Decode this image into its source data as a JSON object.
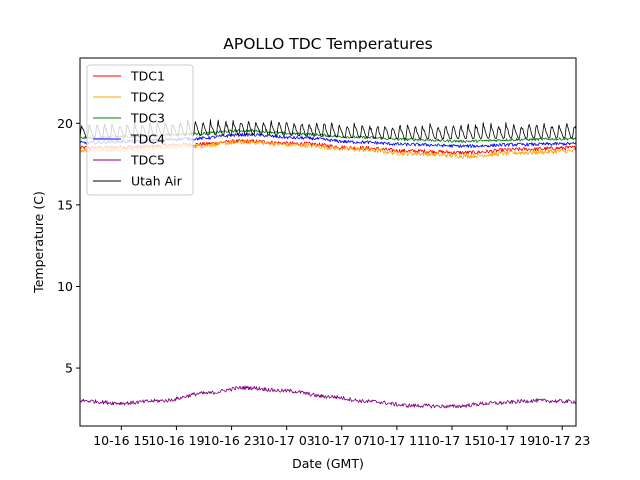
{
  "chart_data": {
    "type": "line",
    "title": "APOLLO TDC Temperatures",
    "xlabel": "Date (GMT)",
    "ylabel": "Temperature (C)",
    "x_unit": "hours since 10-16 00:00 GMT",
    "xlim": [
      12.0,
      48.0
    ],
    "ylim": [
      1.45,
      24.0
    ],
    "grid": false,
    "legend_position": "upper-left",
    "x_ticks": [
      {
        "value": 15,
        "label": "10-16 15"
      },
      {
        "value": 19,
        "label": "10-16 19"
      },
      {
        "value": 23,
        "label": "10-16 23"
      },
      {
        "value": 27,
        "label": "10-17 03"
      },
      {
        "value": 31,
        "label": "10-17 07"
      },
      {
        "value": 35,
        "label": "10-17 11"
      },
      {
        "value": 39,
        "label": "10-17 15"
      },
      {
        "value": 43,
        "label": "10-17 19"
      },
      {
        "value": 47,
        "label": "10-17 23"
      }
    ],
    "y_ticks": [
      {
        "value": 5,
        "label": "5"
      },
      {
        "value": 10,
        "label": "10"
      },
      {
        "value": 15,
        "label": "15"
      },
      {
        "value": 20,
        "label": "20"
      }
    ],
    "series": [
      {
        "name": "TDC1",
        "color": "#ff0000",
        "noise": 0.12,
        "x": [
          12,
          16,
          20,
          24,
          28,
          32,
          36,
          40,
          44,
          48
        ],
        "y": [
          18.5,
          18.55,
          18.7,
          18.9,
          18.75,
          18.5,
          18.3,
          18.2,
          18.4,
          18.5
        ]
      },
      {
        "name": "TDC2",
        "color": "#ffa500",
        "noise": 0.14,
        "x": [
          12,
          16,
          20,
          24,
          28,
          32,
          36,
          40,
          44,
          48
        ],
        "y": [
          18.35,
          18.4,
          18.6,
          18.85,
          18.65,
          18.4,
          18.15,
          18.0,
          18.2,
          18.3
        ]
      },
      {
        "name": "TDC3",
        "color": "#008000",
        "noise": 0.08,
        "x": [
          12,
          16,
          20,
          24,
          28,
          32,
          36,
          40,
          44,
          48
        ],
        "y": [
          19.1,
          19.2,
          19.35,
          19.55,
          19.35,
          19.15,
          19.0,
          18.9,
          19.0,
          19.05
        ]
      },
      {
        "name": "TDC4",
        "color": "#0000ff",
        "noise": 0.1,
        "x": [
          12,
          16,
          20,
          24,
          28,
          32,
          36,
          40,
          44,
          48
        ],
        "y": [
          18.8,
          18.9,
          19.05,
          19.3,
          19.1,
          18.85,
          18.7,
          18.6,
          18.7,
          18.75
        ]
      },
      {
        "name": "TDC5",
        "color": "#800080",
        "noise": 0.12,
        "x": [
          12,
          15,
          18,
          21,
          24,
          27,
          30,
          33,
          36,
          39,
          42,
          45,
          48
        ],
        "y": [
          3.0,
          2.85,
          3.0,
          3.45,
          3.8,
          3.6,
          3.25,
          2.95,
          2.7,
          2.65,
          2.85,
          3.0,
          2.95
        ]
      },
      {
        "name": "Utah Air",
        "color": "#000000",
        "noise": 0.0,
        "sawtooth": {
          "base": 19.1,
          "peak": 20.0,
          "period_hours": 0.55
        },
        "x": [
          12,
          24,
          36,
          48
        ],
        "y": [
          19.1,
          19.3,
          19.05,
          19.1
        ]
      }
    ]
  }
}
